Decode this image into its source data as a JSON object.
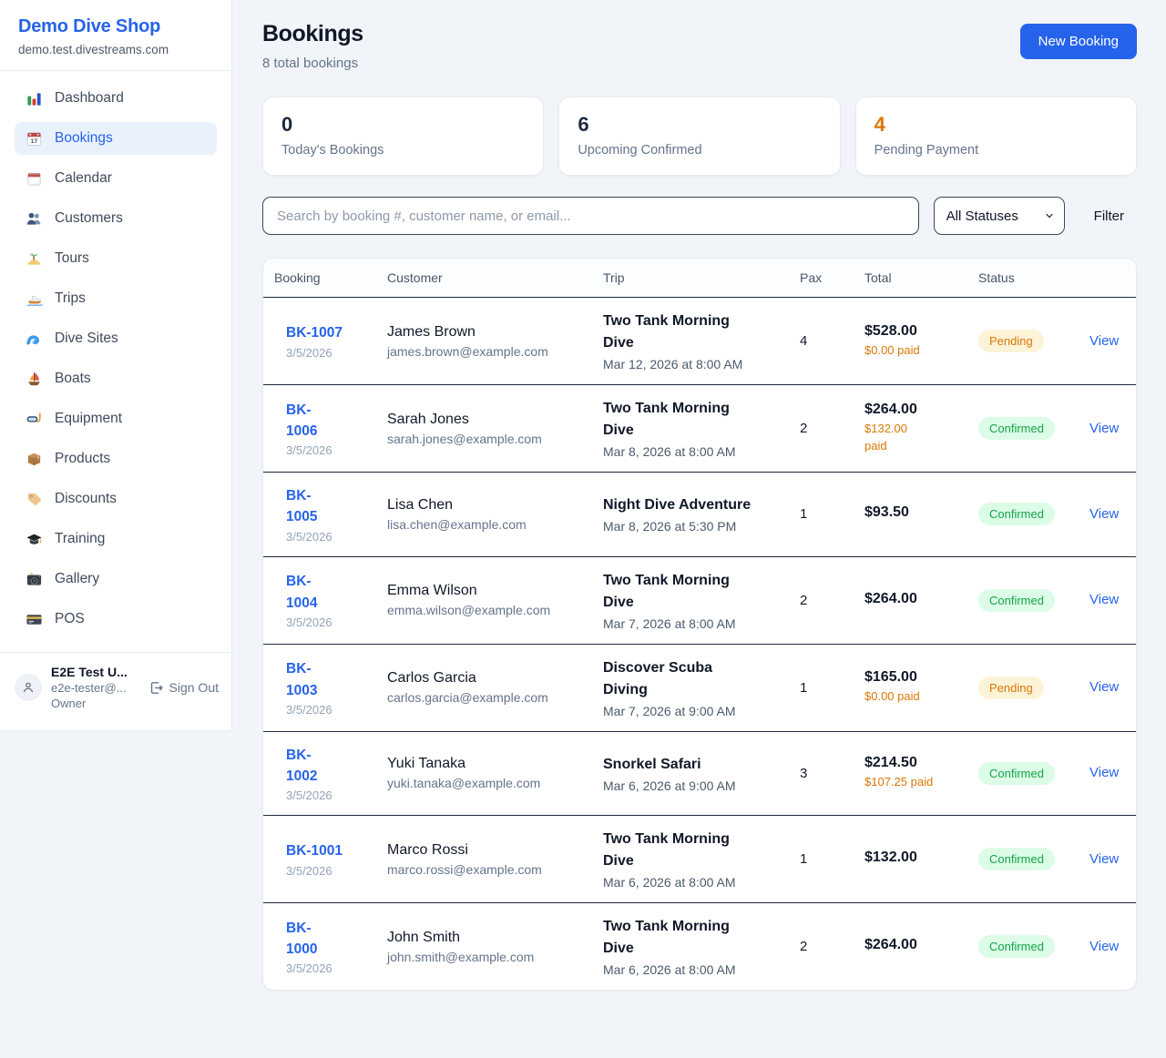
{
  "sidebar": {
    "brand": {
      "name": "Demo Dive Shop",
      "domain": "demo.test.divestreams.com"
    },
    "nav": [
      {
        "label": "Dashboard",
        "icon": "bar-chart",
        "state": ""
      },
      {
        "label": "Bookings",
        "icon": "calendar-date",
        "state": "active"
      },
      {
        "label": "Calendar",
        "icon": "calendar-tear",
        "state": ""
      },
      {
        "label": "Customers",
        "icon": "people",
        "state": ""
      },
      {
        "label": "Tours",
        "icon": "island",
        "state": ""
      },
      {
        "label": "Trips",
        "icon": "speedboat",
        "state": ""
      },
      {
        "label": "Dive Sites",
        "icon": "wave",
        "state": ""
      },
      {
        "label": "Boats",
        "icon": "sailboat",
        "state": ""
      },
      {
        "label": "Equipment",
        "icon": "dive-mask",
        "state": ""
      },
      {
        "label": "Products",
        "icon": "package",
        "state": ""
      },
      {
        "label": "Discounts",
        "icon": "tag",
        "state": ""
      },
      {
        "label": "Training",
        "icon": "grad-cap",
        "state": ""
      },
      {
        "label": "Gallery",
        "icon": "camera",
        "state": ""
      },
      {
        "label": "POS",
        "icon": "credit-card",
        "state": ""
      }
    ],
    "user": {
      "name": "E2E Test U...",
      "email": "e2e-tester@...",
      "role": "Owner",
      "sign_out": "Sign Out"
    }
  },
  "header": {
    "title": "Bookings",
    "subtitle": "8 total bookings",
    "new_booking": "New Booking"
  },
  "stats": [
    {
      "value": "0",
      "label": "Today's Bookings",
      "accent": ""
    },
    {
      "value": "6",
      "label": "Upcoming Confirmed",
      "accent": ""
    },
    {
      "value": "4",
      "label": "Pending Payment",
      "accent": "orange"
    }
  ],
  "filters": {
    "search_placeholder": "Search by booking #, customer name, or email...",
    "status_select": "All Statuses",
    "filter_label": "Filter"
  },
  "table": {
    "columns": [
      "Booking",
      "Customer",
      "Trip",
      "Pax",
      "Total",
      "Status",
      ""
    ],
    "rows": [
      {
        "booking_id": "BK-1007",
        "booking_date": "3/5/2026",
        "customer": "James Brown",
        "email": "james.brown@example.com",
        "trip": "Two Tank Morning\nDive",
        "trip_datetime": "Mar 12, 2026 at 8:00 AM",
        "pax": "4",
        "total": "$528.00",
        "paid": "$0.00 paid",
        "status": {
          "label": "Pending",
          "kind": "pending"
        },
        "action": "View"
      },
      {
        "booking_id": "BK-\n1006",
        "booking_date": "3/5/2026",
        "customer": "Sarah Jones",
        "email": "sarah.jones@example.com",
        "trip": "Two Tank Morning\nDive",
        "trip_datetime": "Mar 8, 2026 at 8:00 AM",
        "pax": "2",
        "total": "$264.00",
        "paid": "$132.00\npaid",
        "status": {
          "label": "Confirmed",
          "kind": "confirmed"
        },
        "action": "View"
      },
      {
        "booking_id": "BK-\n1005",
        "booking_date": "3/5/2026",
        "customer": "Lisa Chen",
        "email": "lisa.chen@example.com",
        "trip": "Night Dive Adventure",
        "trip_datetime": "Mar 8, 2026 at 5:30 PM",
        "pax": "1",
        "total": "$93.50",
        "paid": "",
        "status": {
          "label": "Confirmed",
          "kind": "confirmed"
        },
        "action": "View"
      },
      {
        "booking_id": "BK-\n1004",
        "booking_date": "3/5/2026",
        "customer": "Emma Wilson",
        "email": "emma.wilson@example.com",
        "trip": "Two Tank Morning\nDive",
        "trip_datetime": "Mar 7, 2026 at 8:00 AM",
        "pax": "2",
        "total": "$264.00",
        "paid": "",
        "status": {
          "label": "Confirmed",
          "kind": "confirmed"
        },
        "action": "View"
      },
      {
        "booking_id": "BK-\n1003",
        "booking_date": "3/5/2026",
        "customer": "Carlos Garcia",
        "email": "carlos.garcia@example.com",
        "trip": "Discover Scuba\nDiving",
        "trip_datetime": "Mar 7, 2026 at 9:00 AM",
        "pax": "1",
        "total": "$165.00",
        "paid": "$0.00 paid",
        "status": {
          "label": "Pending",
          "kind": "pending"
        },
        "action": "View"
      },
      {
        "booking_id": "BK-\n1002",
        "booking_date": "3/5/2026",
        "customer": "Yuki Tanaka",
        "email": "yuki.tanaka@example.com",
        "trip": "Snorkel Safari",
        "trip_datetime": "Mar 6, 2026 at 9:00 AM",
        "pax": "3",
        "total": "$214.50",
        "paid": "$107.25 paid",
        "status": {
          "label": "Confirmed",
          "kind": "confirmed"
        },
        "action": "View"
      },
      {
        "booking_id": "BK-1001",
        "booking_date": "3/5/2026",
        "customer": "Marco Rossi",
        "email": "marco.rossi@example.com",
        "trip": "Two Tank Morning\nDive",
        "trip_datetime": "Mar 6, 2026 at 8:00 AM",
        "pax": "1",
        "total": "$132.00",
        "paid": "",
        "status": {
          "label": "Confirmed",
          "kind": "confirmed"
        },
        "action": "View"
      },
      {
        "booking_id": "BK-\n1000",
        "booking_date": "3/5/2026",
        "customer": "John Smith",
        "email": "john.smith@example.com",
        "trip": "Two Tank Morning\nDive",
        "trip_datetime": "Mar 6, 2026 at 8:00 AM",
        "pax": "2",
        "total": "$264.00",
        "paid": "",
        "status": {
          "label": "Confirmed",
          "kind": "confirmed"
        },
        "action": "View"
      }
    ]
  },
  "colors": {
    "brand_blue": "#2563eb",
    "pending_orange": "#d97706",
    "confirmed_green": "#16a34a",
    "page_bg": "#f1f4f8"
  }
}
